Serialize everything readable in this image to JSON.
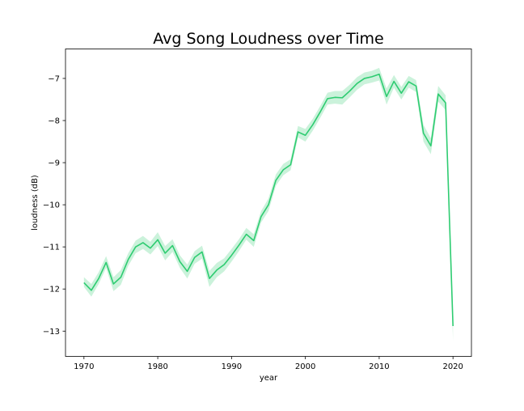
{
  "chart_data": {
    "type": "line",
    "title": "Avg Song Loudness over Time",
    "xlabel": "year",
    "ylabel": "loudness (dB)",
    "xlim": [
      1967.5,
      2022.5
    ],
    "ylim": [
      -13.6,
      -6.3
    ],
    "xticks": [
      1970,
      1980,
      1990,
      2000,
      2010,
      2020
    ],
    "yticks": [
      -13,
      -12,
      -11,
      -10,
      -9,
      -8,
      -7
    ],
    "grid": false,
    "line_color": "#2ecc71",
    "band_color": "#2ecc71",
    "series": [
      {
        "x": [
          1970,
          1971,
          1972,
          1973,
          1974,
          1975,
          1976,
          1977,
          1978,
          1979,
          1980,
          1981,
          1982,
          1983,
          1984,
          1985,
          1986,
          1987,
          1988,
          1989,
          1990,
          1991,
          1992,
          1993,
          1994,
          1995,
          1996,
          1997,
          1998,
          1999,
          2000,
          2001,
          2002,
          2003,
          2004,
          2005,
          2006,
          2007,
          2008,
          2009,
          2010,
          2011,
          2012,
          2013,
          2014,
          2015,
          2016,
          2017,
          2018,
          2019,
          2020
        ],
        "values": [
          -11.85,
          -12.03,
          -11.75,
          -11.37,
          -11.88,
          -11.72,
          -11.3,
          -11.0,
          -10.9,
          -11.03,
          -10.83,
          -11.15,
          -10.97,
          -11.35,
          -11.58,
          -11.25,
          -11.12,
          -11.75,
          -11.55,
          -11.42,
          -11.2,
          -10.96,
          -10.7,
          -10.85,
          -10.28,
          -10.0,
          -9.42,
          -9.17,
          -9.05,
          -8.27,
          -8.35,
          -8.1,
          -7.8,
          -7.48,
          -7.45,
          -7.46,
          -7.3,
          -7.12,
          -7.0,
          -6.96,
          -6.9,
          -7.43,
          -7.07,
          -7.35,
          -7.08,
          -7.18,
          -8.3,
          -8.6,
          -7.37,
          -7.58,
          -12.88
        ],
        "lower": [
          -11.95,
          -12.18,
          -11.88,
          -11.5,
          -12.05,
          -11.9,
          -11.45,
          -11.15,
          -11.05,
          -11.18,
          -10.98,
          -11.32,
          -11.12,
          -11.5,
          -11.75,
          -11.4,
          -11.28,
          -11.95,
          -11.72,
          -11.58,
          -11.35,
          -11.1,
          -10.83,
          -11.0,
          -10.42,
          -10.15,
          -9.55,
          -9.3,
          -9.18,
          -8.4,
          -8.5,
          -8.24,
          -7.94,
          -7.62,
          -7.6,
          -7.62,
          -7.45,
          -7.27,
          -7.14,
          -7.1,
          -7.05,
          -7.62,
          -7.22,
          -7.5,
          -7.22,
          -7.32,
          -8.5,
          -8.8,
          -7.55,
          -7.75,
          -13.22
        ],
        "upper": [
          -11.72,
          -11.88,
          -11.6,
          -11.22,
          -11.72,
          -11.55,
          -11.15,
          -10.85,
          -10.74,
          -10.88,
          -10.65,
          -10.98,
          -10.82,
          -11.2,
          -11.42,
          -11.1,
          -10.97,
          -11.57,
          -11.38,
          -11.27,
          -11.05,
          -10.82,
          -10.55,
          -10.7,
          -10.15,
          -9.85,
          -9.28,
          -9.03,
          -8.92,
          -8.13,
          -8.2,
          -7.96,
          -7.66,
          -7.34,
          -7.3,
          -7.3,
          -7.15,
          -6.97,
          -6.86,
          -6.82,
          -6.75,
          -7.24,
          -6.92,
          -7.2,
          -6.94,
          -7.04,
          -8.1,
          -8.42,
          -7.18,
          -7.4,
          -12.55
        ]
      }
    ]
  }
}
